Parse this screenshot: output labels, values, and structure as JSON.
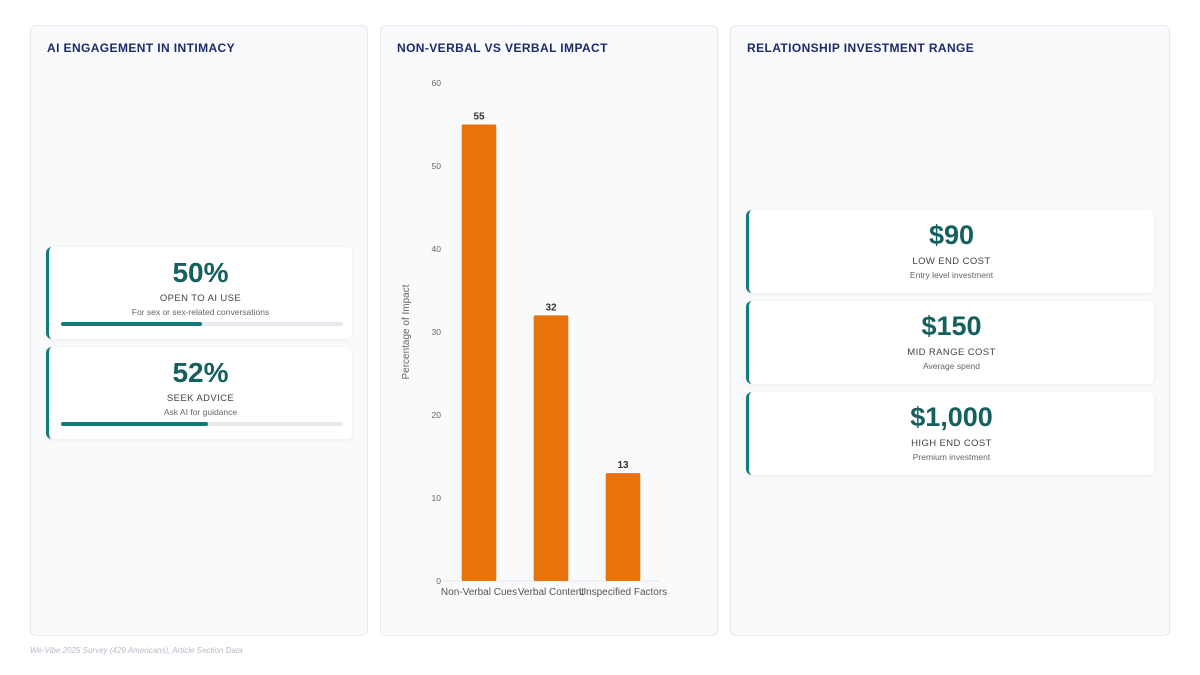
{
  "panels": {
    "engagement": {
      "title": "AI ENGAGEMENT IN INTIMACY",
      "stats": [
        {
          "value": "50%",
          "label": "OPEN TO AI USE",
          "sub": "For sex or sex-related conversations",
          "progress": 0.5
        },
        {
          "value": "52%",
          "label": "SEEK ADVICE",
          "sub": "Ask AI for guidance",
          "progress": 0.52
        }
      ]
    },
    "impact": {
      "title": "NON-VERBAL VS VERBAL IMPACT"
    },
    "investment": {
      "title": "RELATIONSHIP INVESTMENT RANGE",
      "costs": [
        {
          "value": "$90",
          "label": "LOW END COST",
          "sub": "Entry level investment"
        },
        {
          "value": "$150",
          "label": "MID RANGE COST",
          "sub": "Average spend"
        },
        {
          "value": "$1,000",
          "label": "HIGH END COST",
          "sub": "Premium investment"
        }
      ]
    }
  },
  "chart_data": {
    "type": "bar",
    "categories": [
      "Non-Verbal Cues",
      "Verbal Content",
      "Unspecified Factors"
    ],
    "values": [
      55,
      32,
      13
    ],
    "ylabel": "Percentage of Impact",
    "ylim": [
      0,
      60
    ],
    "yticks": [
      0,
      10,
      20,
      30,
      40,
      50,
      60
    ],
    "bar_color": "#e8720c",
    "grid": false,
    "data_labels": true
  },
  "footer": {
    "source": "We-Vibe 2025 Survey (429 Americans), Article Section Data"
  },
  "colors": {
    "accent": "#137a7a",
    "value_text": "#15605e",
    "title_text": "#1d2a6b"
  }
}
